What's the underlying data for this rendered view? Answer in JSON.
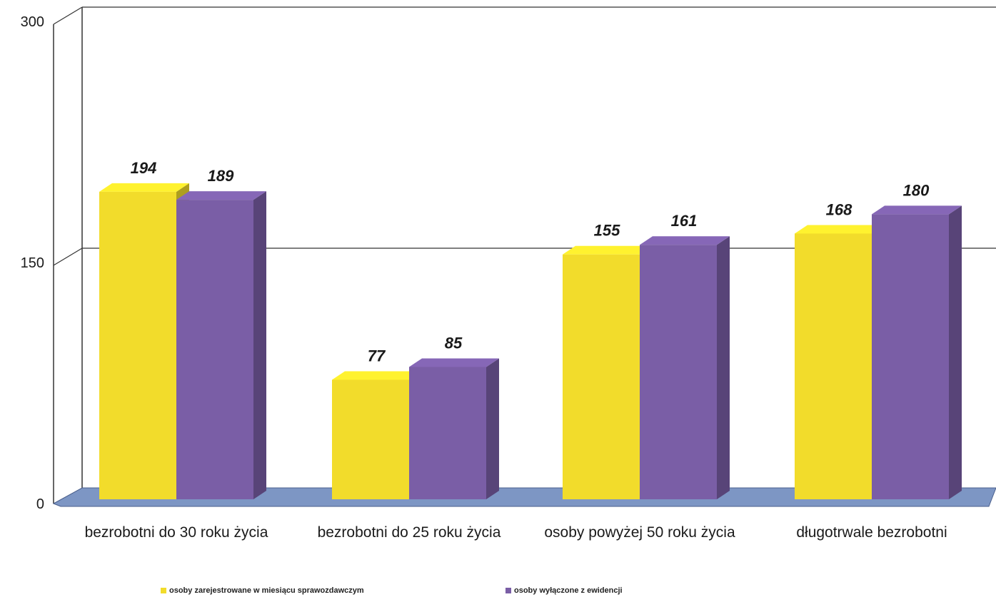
{
  "chart_data": {
    "type": "bar",
    "three_d": true,
    "categories": [
      "bezrobotni do 30 roku życia",
      "bezrobotni do 25 roku życia",
      "osoby powyżej 50 roku życia",
      "długotrwale bezrobotni"
    ],
    "series": [
      {
        "name": "osoby zarejestrowane w miesiącu sprawozdawczym",
        "values": [
          194,
          77,
          155,
          168
        ],
        "color": "#f2dc2b"
      },
      {
        "name": "osoby wyłączone z ewidencji",
        "values": [
          189,
          85,
          161,
          180
        ],
        "color": "#7a5ea6"
      }
    ],
    "ylim": [
      0,
      300
    ],
    "yticks": [
      0,
      150,
      300
    ],
    "grid": true,
    "floor_color": "#7d96c4",
    "legend_position": "bottom"
  }
}
